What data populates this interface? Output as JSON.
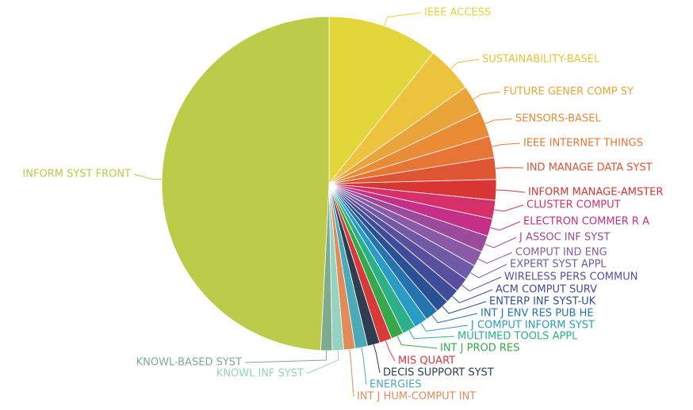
{
  "chart_data": {
    "type": "pie",
    "categories": [
      "IEEE ACCESS",
      "SUSTAINABILITY-BASEL",
      "FUTURE GENER COMP SY",
      "SENSORS-BASEL",
      "IEEE INTERNET THINGS",
      "IND MANAGE DATA SYST",
      "INFORM MANAGE-AMSTER",
      "CLUSTER COMPUT",
      "ELECTRON COMMER R A",
      "J ASSOC INF SYST",
      "COMPUT IND ENG",
      "EXPERT SYST APPL",
      "WIRELESS PERS COMMUN",
      "ACM COMPUT SURV",
      "ENTERP INF SYST-UK",
      "INT J ENV RES PUB HE",
      "J COMPUT INFORM SYST",
      "MULTIMED TOOLS APPL",
      "INT J PROD RES",
      "MIS QUART",
      "DECIS SUPPORT SYST",
      "ENERGIES",
      "INT J HUM-COMPUT INT",
      "KNOWL INF SYST",
      "KNOWL-BASED SYST",
      "INFORM SYST FRONT"
    ],
    "values": [
      10.7,
      4.5,
      2.7,
      2.5,
      2.1,
      2.1,
      2.0,
      1.8,
      1.7,
      1.6,
      1.5,
      1.5,
      1.4,
      1.4,
      1.3,
      1.3,
      1.3,
      1.3,
      1.2,
      1.2,
      1.2,
      1.2,
      1.1,
      1.1,
      1.1,
      49.2
    ],
    "colors": [
      "#e3d63a",
      "#edc23c",
      "#e9a43a",
      "#ea8b36",
      "#e77535",
      "#df5433",
      "#d93535",
      "#d6306a",
      "#c52f87",
      "#9b4a9c",
      "#8a5aa6",
      "#6f5aa6",
      "#5a4f9e",
      "#3f4c9a",
      "#2a4f94",
      "#2474b0",
      "#2a9bc4",
      "#2bb08a",
      "#36a84a",
      "#d83a3a",
      "#2e3d50",
      "#4aaab8",
      "#e08b5a",
      "#93d3c0",
      "#7faa90",
      "#bccb4a"
    ]
  }
}
